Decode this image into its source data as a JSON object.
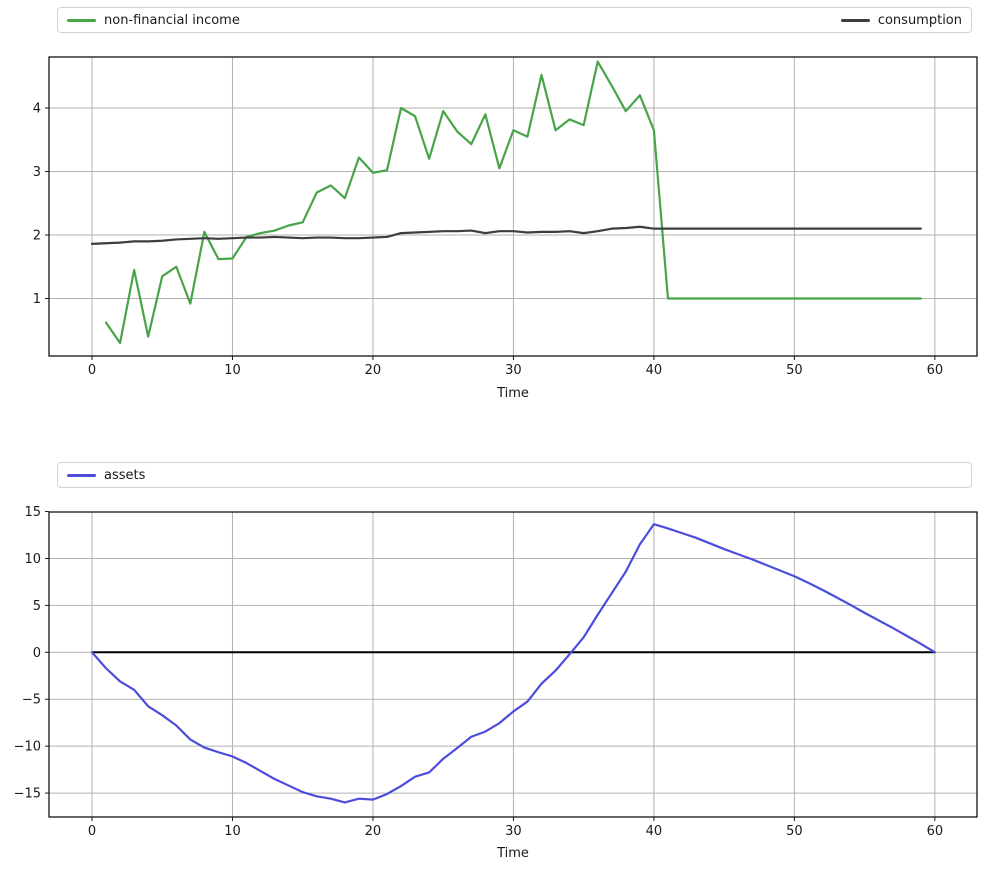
{
  "chart_data": [
    {
      "type": "line",
      "title": "",
      "xlabel": "Time",
      "ylabel": "",
      "xlim": [
        -3.06,
        63.0
      ],
      "ylim": [
        0.095,
        4.803
      ],
      "xticks": [
        0,
        10,
        20,
        30,
        40,
        50,
        60
      ],
      "yticks": [
        1,
        2,
        3,
        4
      ],
      "grid": true,
      "legend_position": "top, full-width expanded, first entry left / second entry right",
      "series": [
        {
          "name": "non-financial income",
          "color": "#48a448",
          "line_width": 2.2,
          "x_start": 1,
          "x_step": 1,
          "values": [
            0.62,
            0.3,
            1.45,
            0.4,
            1.35,
            1.5,
            0.92,
            2.05,
            1.62,
            1.63,
            1.97,
            2.03,
            2.07,
            2.15,
            2.2,
            2.67,
            2.78,
            2.58,
            3.22,
            2.98,
            3.02,
            4.0,
            3.87,
            3.2,
            3.95,
            3.63,
            3.43,
            3.9,
            3.05,
            3.65,
            3.55,
            4.52,
            3.65,
            3.82,
            3.73,
            4.73,
            4.35,
            3.95,
            4.2,
            3.65,
            1.0,
            1.0,
            1.0,
            1.0,
            1.0,
            1.0,
            1.0,
            1.0,
            1.0,
            1.0,
            1.0,
            1.0,
            1.0,
            1.0,
            1.0,
            1.0,
            1.0,
            1.0,
            1.0
          ]
        },
        {
          "name": "consumption",
          "color": "#3d3d3d",
          "line_width": 2.2,
          "x_start": 0,
          "x_step": 1,
          "values": [
            1.86,
            1.87,
            1.88,
            1.9,
            1.9,
            1.91,
            1.93,
            1.94,
            1.95,
            1.94,
            1.95,
            1.96,
            1.96,
            1.97,
            1.96,
            1.95,
            1.96,
            1.96,
            1.95,
            1.95,
            1.96,
            1.97,
            2.03,
            2.04,
            2.05,
            2.06,
            2.06,
            2.07,
            2.03,
            2.06,
            2.06,
            2.04,
            2.05,
            2.05,
            2.06,
            2.03,
            2.06,
            2.1,
            2.11,
            2.13,
            2.1,
            2.1,
            2.1,
            2.1,
            2.1,
            2.1,
            2.1,
            2.1,
            2.1,
            2.1,
            2.1,
            2.1,
            2.1,
            2.1,
            2.1,
            2.1,
            2.1,
            2.1,
            2.1,
            2.1
          ]
        }
      ],
      "hlines": []
    },
    {
      "type": "line",
      "title": "",
      "xlabel": "Time",
      "ylabel": "",
      "xlim": [
        -3.06,
        63.0
      ],
      "ylim": [
        -17.55,
        14.95
      ],
      "xticks": [
        0,
        10,
        20,
        30,
        40,
        50,
        60
      ],
      "yticks": [
        -15,
        -10,
        -5,
        0,
        5,
        10,
        15
      ],
      "grid": true,
      "legend_position": "top, full-width expanded, single entry left",
      "series": [
        {
          "name": "assets",
          "color": "#4c4cdd",
          "line_width": 2.2,
          "x_start": 0,
          "x_step": 1,
          "values": [
            0,
            -1.7,
            -3.1,
            -4.0,
            -5.75,
            -6.7,
            -7.8,
            -9.3,
            -10.15,
            -10.65,
            -11.1,
            -11.8,
            -12.65,
            -13.5,
            -14.2,
            -14.9,
            -15.35,
            -15.6,
            -16.0,
            -15.6,
            -15.7,
            -15.1,
            -14.25,
            -13.25,
            -12.8,
            -11.35,
            -10.2,
            -9.0,
            -8.45,
            -7.55,
            -6.3,
            -5.25,
            -3.35,
            -1.95,
            -0.2,
            1.6,
            4.0,
            6.3,
            8.6,
            11.5,
            13.65,
            13.2,
            12.7,
            12.2,
            11.6,
            11.0,
            10.45,
            9.9,
            9.3,
            8.7,
            8.1,
            7.4,
            6.65,
            5.85,
            5.05,
            4.2,
            3.4,
            2.6,
            1.75,
            0.9,
            0
          ]
        }
      ],
      "hlines": [
        {
          "y": 0,
          "x0": 0,
          "x1": 60,
          "color": "#000000",
          "width": 2
        }
      ]
    }
  ],
  "style": {
    "grid_color": "#b2b2b2",
    "spine_color": "#000000",
    "tick_color": "#1a1a1a",
    "background": "#ffffff"
  }
}
